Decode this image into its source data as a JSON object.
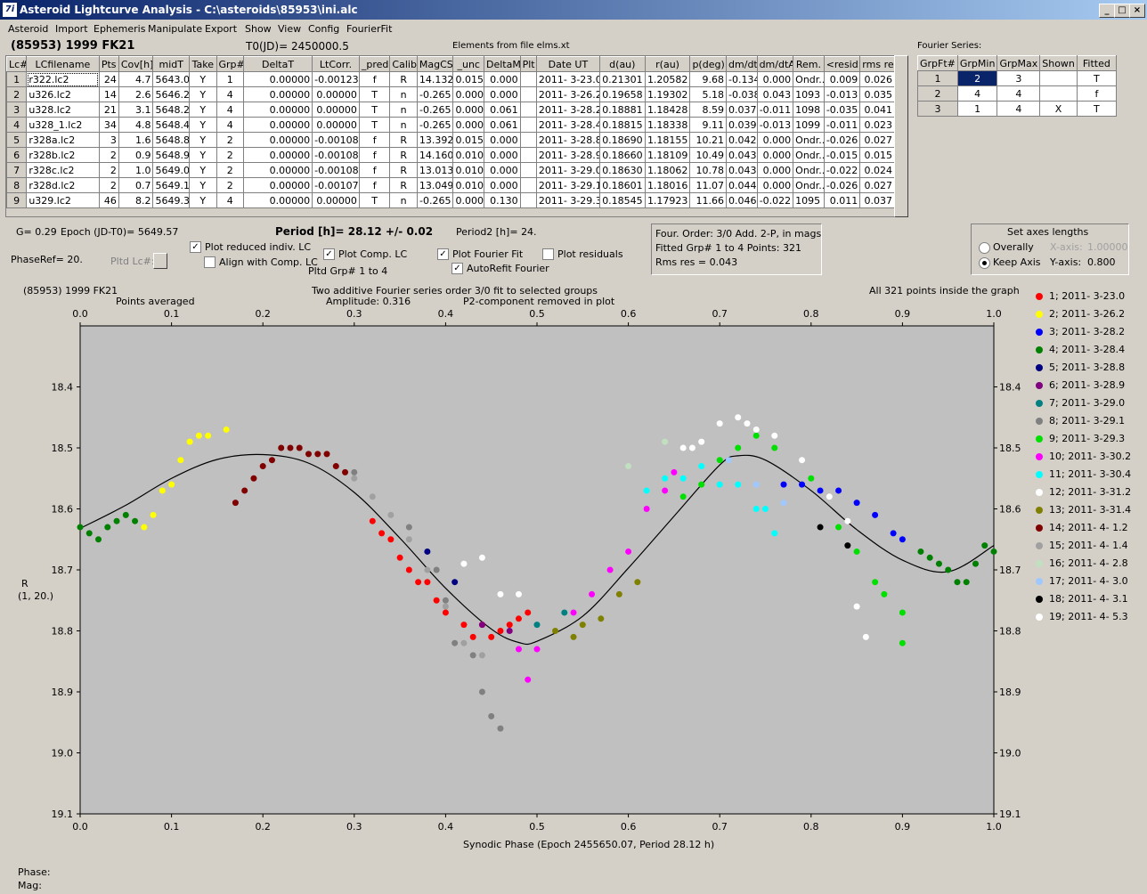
{
  "window": {
    "title": "Asteroid Lightcurve Analysis - C:\\asteroids\\85953\\ini.alc",
    "icon_label": "7i",
    "controls": [
      "_",
      "□",
      "×"
    ]
  },
  "menu": [
    "Asteroid",
    "Import",
    "Ephemeris",
    "Manipulate",
    "Export",
    "Show",
    "View",
    "Config",
    "FourierFit"
  ],
  "header": {
    "object": "(85953) 1999 FK21",
    "t0": "T0(JD)= 2450000.5",
    "elements": "Elements from file elms.xt",
    "fourier_label": "Fourier Series:"
  },
  "lc_table": {
    "columns": [
      "Lc#",
      "LCfilename",
      "Pts",
      "Cov[h]",
      "midT",
      "Take",
      "Grp#",
      "DeltaT",
      "LtCorr.",
      "_pred.",
      "Calib.",
      "MagCS",
      "_unc",
      "DeltaM",
      "Plt",
      "Date UT",
      "d(au)",
      "r(au)",
      "p(deg)",
      "dm/dt",
      "dm/dtA",
      "Rem.",
      "<resid>",
      "rms res"
    ],
    "rows": [
      [
        "1",
        "r322.lc2",
        "24",
        "4.7",
        "5643.0",
        "Y",
        "1",
        "0.00000",
        "-0.00123",
        "f",
        "R",
        "14.132",
        "0.015",
        "0.000",
        "",
        "2011- 3-23.0",
        "0.21301",
        "1.20582",
        "9.68",
        "-0.134",
        "0.000",
        "Ondr...",
        "0.009",
        "0.026"
      ],
      [
        "2",
        "u326.lc2",
        "14",
        "2.6",
        "5646.2",
        "Y",
        "4",
        "0.00000",
        "0.00000",
        "T",
        "n",
        "-0.265",
        "0.000",
        "0.000",
        "",
        "2011- 3-26.2",
        "0.19658",
        "1.19302",
        "5.18",
        "-0.038",
        "0.043",
        "1093",
        "-0.013",
        "0.035"
      ],
      [
        "3",
        "u328.lc2",
        "21",
        "3.1",
        "5648.2",
        "Y",
        "4",
        "0.00000",
        "0.00000",
        "T",
        "n",
        "-0.265",
        "0.000",
        "0.061",
        "",
        "2011- 3-28.2",
        "0.18881",
        "1.18428",
        "8.59",
        "0.037",
        "-0.011",
        "1098",
        "-0.035",
        "0.041"
      ],
      [
        "4",
        "u328_1.lc2",
        "34",
        "4.8",
        "5648.4",
        "Y",
        "4",
        "0.00000",
        "0.00000",
        "T",
        "n",
        "-0.265",
        "0.000",
        "0.061",
        "",
        "2011- 3-28.4",
        "0.18815",
        "1.18338",
        "9.11",
        "0.039",
        "-0.013",
        "1099",
        "-0.011",
        "0.023"
      ],
      [
        "5",
        "r328a.lc2",
        "3",
        "1.6",
        "5648.8",
        "Y",
        "2",
        "0.00000",
        "-0.00108",
        "f",
        "R",
        "13.392",
        "0.015",
        "0.000",
        "",
        "2011- 3-28.8",
        "0.18690",
        "1.18155",
        "10.21",
        "0.042",
        "0.000",
        "Ondr...",
        "-0.026",
        "0.027"
      ],
      [
        "6",
        "r328b.lc2",
        "2",
        "0.9",
        "5648.9",
        "Y",
        "2",
        "0.00000",
        "-0.00108",
        "f",
        "R",
        "14.160",
        "0.010",
        "0.000",
        "",
        "2011- 3-28.9",
        "0.18660",
        "1.18109",
        "10.49",
        "0.043",
        "0.000",
        "Ondr...",
        "-0.015",
        "0.015"
      ],
      [
        "7",
        "r328c.lc2",
        "2",
        "1.0",
        "5649.0",
        "Y",
        "2",
        "0.00000",
        "-0.00108",
        "f",
        "R",
        "13.013",
        "0.010",
        "0.000",
        "",
        "2011- 3-29.0",
        "0.18630",
        "1.18062",
        "10.78",
        "0.043",
        "0.000",
        "Ondr...",
        "-0.022",
        "0.024"
      ],
      [
        "8",
        "r328d.lc2",
        "2",
        "0.7",
        "5649.1",
        "Y",
        "2",
        "0.00000",
        "-0.00107",
        "f",
        "R",
        "13.049",
        "0.010",
        "0.000",
        "",
        "2011- 3-29.1",
        "0.18601",
        "1.18016",
        "11.07",
        "0.044",
        "0.000",
        "Ondr...",
        "-0.026",
        "0.027"
      ],
      [
        "9",
        "u329.lc2",
        "46",
        "8.2",
        "5649.3",
        "Y",
        "4",
        "0.00000",
        "0.00000",
        "T",
        "n",
        "-0.265",
        "0.000",
        "0.130",
        "",
        "2011- 3-29.3",
        "0.18545",
        "1.17923",
        "11.66",
        "0.046",
        "-0.022",
        "1095",
        "0.011",
        "0.037"
      ]
    ]
  },
  "fourier_table": {
    "columns": [
      "GrpFt#",
      "GrpMin",
      "GrpMax",
      "Shown",
      "Fitted"
    ],
    "rows": [
      [
        "1",
        "2",
        "3",
        "",
        "T"
      ],
      [
        "2",
        "4",
        "4",
        "",
        "f"
      ],
      [
        "3",
        "1",
        "4",
        "X",
        "T"
      ]
    ]
  },
  "info": {
    "g": "G= 0.29",
    "epoch": "Epoch (JD-T0)= 5649.57",
    "period": "Period [h]= 28.12 +/- 0.02",
    "period2": "Period2 [h]= 24.",
    "phaseref": "PhaseRef= 20.",
    "pltd_lc": "Pltd Lc#:",
    "pltd_grp": "Pltd Grp#  1    to    4",
    "fit_line1": "Four. Order:  3/0      Add. 2-P, in mags",
    "fit_line2": "Fitted Grp# 1 to 4      Points: 321",
    "fit_line3": "Rms res     = 0.043"
  },
  "checkboxes": {
    "plot_reduced": {
      "label": "Plot reduced indiv. LC",
      "checked": true
    },
    "align_comp": {
      "label": "Align with Comp. LC",
      "checked": false
    },
    "plot_comp": {
      "label": "Plot Comp. LC",
      "checked": true
    },
    "plot_fourier": {
      "label": "Plot Fourier Fit",
      "checked": true
    },
    "autorefit": {
      "label": "AutoRefit Fourier",
      "checked": true
    },
    "plot_residuals": {
      "label": "Plot residuals",
      "checked": false
    }
  },
  "axes_box": {
    "title": "Set axes lengths",
    "overally": "Overally",
    "keep_axis": "Keep Axis",
    "x_axis_label": "X-axis:",
    "x_axis_value": "1.00000",
    "y_axis_label": "Y-axis:",
    "y_axis_value": "0.800",
    "selected": "keep_axis"
  },
  "status": {
    "phase_label": "Phase:",
    "mag_label": "Mag:"
  },
  "chart_data": {
    "type": "scatter",
    "title_left": "(85953) 1999 FK21",
    "subtitle_left": "Points averaged",
    "title_center": "Two additive Fourier series order 3/0 fit to selected groups",
    "amplitude": "Amplitude: 0.316",
    "p2note": "P2-component removed in plot",
    "title_right": "All 321 points inside the graph",
    "xlabel": "Synodic Phase (Epoch 2455650.07, Period 28.12 h)",
    "ylabel": "R",
    "ylabel2": "(1, 20.)",
    "xlim": [
      0.0,
      1.0
    ],
    "ylim": [
      18.3,
      19.1
    ],
    "y_inverted": true,
    "x_ticks": [
      "0.0",
      "0.1",
      "0.2",
      "0.3",
      "0.4",
      "0.5",
      "0.6",
      "0.7",
      "0.8",
      "0.9",
      "1.0"
    ],
    "y_ticks": [
      "18.4",
      "18.5",
      "18.6",
      "18.7",
      "18.8",
      "18.9",
      "19.0",
      "19.1"
    ],
    "fit_curve": [
      [
        0.0,
        18.632
      ],
      [
        0.05,
        18.594
      ],
      [
        0.1,
        18.55
      ],
      [
        0.15,
        18.519
      ],
      [
        0.2,
        18.511
      ],
      [
        0.25,
        18.525
      ],
      [
        0.3,
        18.573
      ],
      [
        0.35,
        18.648
      ],
      [
        0.4,
        18.73
      ],
      [
        0.45,
        18.797
      ],
      [
        0.48,
        18.819
      ],
      [
        0.5,
        18.817
      ],
      [
        0.55,
        18.776
      ],
      [
        0.6,
        18.697
      ],
      [
        0.65,
        18.612
      ],
      [
        0.7,
        18.528
      ],
      [
        0.72,
        18.513
      ],
      [
        0.75,
        18.52
      ],
      [
        0.8,
        18.57
      ],
      [
        0.85,
        18.634
      ],
      [
        0.9,
        18.684
      ],
      [
        0.95,
        18.703
      ],
      [
        1.0,
        18.66
      ]
    ],
    "series": [
      {
        "name": "1; 2011- 3-23.0",
        "color": "#ff0000",
        "points": [
          [
            0.32,
            18.62
          ],
          [
            0.33,
            18.64
          ],
          [
            0.34,
            18.65
          ],
          [
            0.35,
            18.68
          ],
          [
            0.36,
            18.7
          ],
          [
            0.37,
            18.72
          ],
          [
            0.38,
            18.72
          ],
          [
            0.39,
            18.75
          ],
          [
            0.4,
            18.77
          ],
          [
            0.42,
            18.79
          ],
          [
            0.43,
            18.81
          ],
          [
            0.44,
            18.79
          ],
          [
            0.45,
            18.81
          ],
          [
            0.46,
            18.8
          ],
          [
            0.47,
            18.79
          ],
          [
            0.48,
            18.78
          ],
          [
            0.49,
            18.77
          ]
        ]
      },
      {
        "name": "2; 2011- 3-26.2",
        "color": "#ffff00",
        "points": [
          [
            0.07,
            18.63
          ],
          [
            0.08,
            18.61
          ],
          [
            0.09,
            18.57
          ],
          [
            0.1,
            18.56
          ],
          [
            0.11,
            18.52
          ],
          [
            0.12,
            18.49
          ],
          [
            0.13,
            18.48
          ],
          [
            0.14,
            18.48
          ],
          [
            0.16,
            18.47
          ]
        ]
      },
      {
        "name": "3; 2011- 3-28.2",
        "color": "#0000ff",
        "points": [
          [
            0.77,
            18.56
          ],
          [
            0.79,
            18.56
          ],
          [
            0.81,
            18.57
          ],
          [
            0.83,
            18.57
          ],
          [
            0.85,
            18.59
          ],
          [
            0.87,
            18.61
          ],
          [
            0.89,
            18.64
          ],
          [
            0.9,
            18.65
          ]
        ]
      },
      {
        "name": "4; 2011- 3-28.4",
        "color": "#008000",
        "points": [
          [
            0.0,
            18.63
          ],
          [
            0.01,
            18.64
          ],
          [
            0.02,
            18.65
          ],
          [
            0.03,
            18.63
          ],
          [
            0.04,
            18.62
          ],
          [
            0.05,
            18.61
          ],
          [
            0.06,
            18.62
          ],
          [
            0.92,
            18.67
          ],
          [
            0.93,
            18.68
          ],
          [
            0.94,
            18.69
          ],
          [
            0.95,
            18.7
          ],
          [
            0.96,
            18.72
          ],
          [
            0.97,
            18.72
          ],
          [
            0.98,
            18.69
          ],
          [
            0.99,
            18.66
          ],
          [
            1.0,
            18.67
          ]
        ]
      },
      {
        "name": "5; 2011- 3-28.8",
        "color": "#000080",
        "points": [
          [
            0.38,
            18.67
          ],
          [
            0.41,
            18.72
          ]
        ]
      },
      {
        "name": "6; 2011- 3-28.9",
        "color": "#800080",
        "points": [
          [
            0.44,
            18.79
          ],
          [
            0.47,
            18.8
          ]
        ]
      },
      {
        "name": "7; 2011- 3-29.0",
        "color": "#008080",
        "points": [
          [
            0.5,
            18.79
          ],
          [
            0.53,
            18.77
          ]
        ]
      },
      {
        "name": "8; 2011- 3-29.1",
        "color": "#808080",
        "points": [
          [
            0.3,
            18.54
          ],
          [
            0.36,
            18.63
          ],
          [
            0.39,
            18.7
          ],
          [
            0.4,
            18.75
          ],
          [
            0.41,
            18.82
          ],
          [
            0.43,
            18.84
          ],
          [
            0.44,
            18.9
          ],
          [
            0.45,
            18.94
          ],
          [
            0.46,
            18.96
          ]
        ]
      },
      {
        "name": "9; 2011- 3-29.3",
        "color": "#00e000",
        "points": [
          [
            0.66,
            18.58
          ],
          [
            0.68,
            18.56
          ],
          [
            0.7,
            18.52
          ],
          [
            0.72,
            18.5
          ],
          [
            0.74,
            18.48
          ],
          [
            0.76,
            18.5
          ],
          [
            0.8,
            18.55
          ],
          [
            0.83,
            18.63
          ],
          [
            0.85,
            18.67
          ],
          [
            0.87,
            18.72
          ],
          [
            0.88,
            18.74
          ],
          [
            0.9,
            18.77
          ],
          [
            0.9,
            18.82
          ]
        ]
      },
      {
        "name": "10; 2011- 3-30.2",
        "color": "#ff00ff",
        "points": [
          [
            0.48,
            18.83
          ],
          [
            0.5,
            18.83
          ],
          [
            0.54,
            18.77
          ],
          [
            0.56,
            18.74
          ],
          [
            0.58,
            18.7
          ],
          [
            0.6,
            18.67
          ],
          [
            0.62,
            18.6
          ],
          [
            0.64,
            18.57
          ],
          [
            0.65,
            18.54
          ],
          [
            0.49,
            18.88
          ]
        ]
      },
      {
        "name": "11; 2011- 3-30.4",
        "color": "#00ffff",
        "points": [
          [
            0.62,
            18.57
          ],
          [
            0.64,
            18.55
          ],
          [
            0.66,
            18.55
          ],
          [
            0.68,
            18.53
          ],
          [
            0.7,
            18.56
          ],
          [
            0.72,
            18.56
          ],
          [
            0.74,
            18.6
          ],
          [
            0.75,
            18.6
          ],
          [
            0.76,
            18.64
          ]
        ]
      },
      {
        "name": "12; 2011- 3-31.2",
        "color": "#ffffff",
        "points": [
          [
            0.42,
            18.69
          ],
          [
            0.44,
            18.68
          ],
          [
            0.46,
            18.74
          ],
          [
            0.48,
            18.74
          ],
          [
            0.66,
            18.5
          ],
          [
            0.68,
            18.49
          ],
          [
            0.7,
            18.46
          ],
          [
            0.72,
            18.45
          ],
          [
            0.74,
            18.47
          ],
          [
            0.76,
            18.48
          ],
          [
            0.82,
            18.58
          ],
          [
            0.84,
            18.62
          ],
          [
            0.85,
            18.76
          ],
          [
            0.86,
            18.81
          ]
        ]
      },
      {
        "name": "13; 2011- 3-31.4",
        "color": "#808000",
        "points": [
          [
            0.52,
            18.8
          ],
          [
            0.54,
            18.81
          ],
          [
            0.55,
            18.79
          ],
          [
            0.57,
            18.78
          ],
          [
            0.59,
            18.74
          ],
          [
            0.61,
            18.72
          ]
        ]
      },
      {
        "name": "14; 2011- 4- 1.2",
        "color": "#800000",
        "points": [
          [
            0.17,
            18.59
          ],
          [
            0.18,
            18.57
          ],
          [
            0.19,
            18.55
          ],
          [
            0.2,
            18.53
          ],
          [
            0.21,
            18.52
          ],
          [
            0.22,
            18.5
          ],
          [
            0.23,
            18.5
          ],
          [
            0.24,
            18.5
          ],
          [
            0.25,
            18.51
          ],
          [
            0.26,
            18.51
          ],
          [
            0.27,
            18.51
          ],
          [
            0.28,
            18.53
          ],
          [
            0.29,
            18.54
          ]
        ]
      },
      {
        "name": "15; 2011- 4- 1.4",
        "color": "#a0a0a0",
        "points": [
          [
            0.3,
            18.55
          ],
          [
            0.32,
            18.58
          ],
          [
            0.34,
            18.61
          ],
          [
            0.36,
            18.65
          ],
          [
            0.38,
            18.7
          ],
          [
            0.4,
            18.76
          ],
          [
            0.42,
            18.82
          ],
          [
            0.44,
            18.84
          ]
        ]
      },
      {
        "name": "16; 2011- 4- 2.8",
        "color": "#c0e0c0",
        "points": [
          [
            0.6,
            18.53
          ],
          [
            0.64,
            18.49
          ]
        ]
      },
      {
        "name": "17; 2011- 4- 3.0",
        "color": "#a0c8ff",
        "points": [
          [
            0.71,
            18.52
          ],
          [
            0.74,
            18.56
          ],
          [
            0.77,
            18.59
          ]
        ]
      },
      {
        "name": "18; 2011- 4- 3.1",
        "color": "#000000",
        "points": [
          [
            0.81,
            18.63
          ],
          [
            0.84,
            18.66
          ]
        ]
      },
      {
        "name": "19; 2011- 4- 5.3",
        "color": "#ffffff",
        "points": [
          [
            0.67,
            18.5
          ],
          [
            0.73,
            18.46
          ],
          [
            0.79,
            18.52
          ]
        ]
      }
    ]
  }
}
